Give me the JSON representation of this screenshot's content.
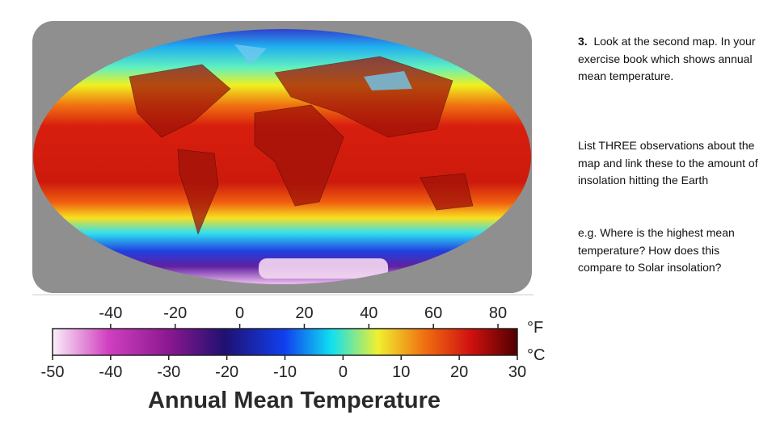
{
  "map": {
    "legend": {
      "title": "Annual Mean Temperature",
      "fahrenheit_unit": "°F",
      "celsius_unit": "°C",
      "clim": [
        -50,
        30
      ],
      "fahrenheit_ticks": [
        -40,
        -20,
        0,
        20,
        40,
        60,
        80
      ],
      "celsius_ticks": [
        -50,
        -40,
        -30,
        -20,
        -10,
        0,
        10,
        20,
        30
      ]
    }
  },
  "text": {
    "question_number": "3.",
    "question": "Look at the second map.  In your exercise book which shows annual mean temperature.",
    "task": "List THREE observations about the map and link these to the amount of insolation hitting the Earth",
    "example": "e.g. Where is the highest mean temperature?  How does this compare to Solar insolation?"
  }
}
